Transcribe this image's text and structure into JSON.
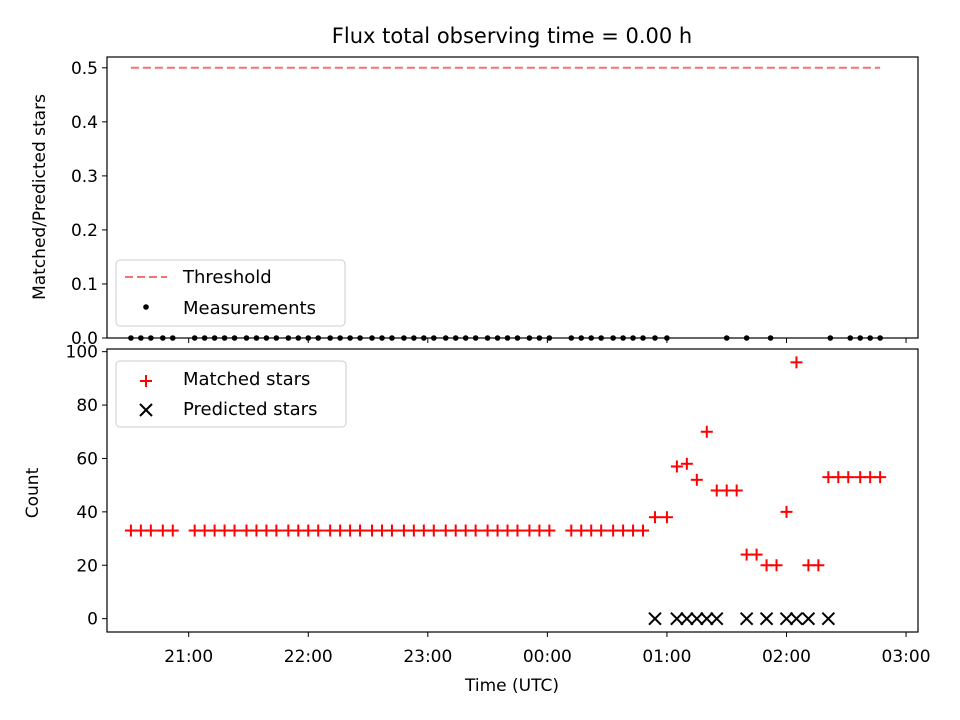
{
  "chart_data": [
    {
      "type": "scatter",
      "title": "Flux total observing time = 0.00 h",
      "ylabel": "Matched/Predicted stars",
      "xlabel": "",
      "ylim": [
        0,
        0.52
      ],
      "xlim": [
        "20:19",
        "03:06"
      ],
      "yticks": [
        "0.0",
        "0.1",
        "0.2",
        "0.3",
        "0.4",
        "0.5"
      ],
      "legend_position": "lower-left",
      "series": [
        {
          "name": "Threshold",
          "kind": "line",
          "style": "dashed",
          "color": "#f87171",
          "x": [
            "20:31",
            "02:47"
          ],
          "y": [
            0.5,
            0.5
          ]
        },
        {
          "name": "Measurements",
          "kind": "scatter",
          "color": "#000000",
          "x": [
            "20:31",
            "20:36",
            "20:41",
            "20:47",
            "20:52",
            "21:03",
            "21:08",
            "21:13",
            "21:18",
            "21:23",
            "21:29",
            "21:34",
            "21:39",
            "21:44",
            "21:50",
            "21:55",
            "22:00",
            "22:05",
            "22:11",
            "22:16",
            "22:21",
            "22:26",
            "22:32",
            "22:37",
            "22:42",
            "22:48",
            "22:53",
            "22:58",
            "23:03",
            "23:09",
            "23:14",
            "23:19",
            "23:24",
            "23:30",
            "23:35",
            "23:40",
            "23:45",
            "23:51",
            "23:56",
            "00:01",
            "00:12",
            "00:17",
            "00:22",
            "00:27",
            "00:33",
            "00:38",
            "00:43",
            "00:48",
            "00:54",
            "01:00",
            "01:30",
            "01:40",
            "01:52",
            "02:22",
            "02:32",
            "02:37",
            "02:42",
            "02:47"
          ],
          "y_all": 0
        }
      ]
    },
    {
      "type": "scatter",
      "title": "",
      "ylabel": "Count",
      "xlabel": "Time (UTC)",
      "ylim": [
        -5,
        101
      ],
      "xlim": [
        "20:19",
        "03:06"
      ],
      "yticks": [
        "0",
        "20",
        "40",
        "60",
        "80",
        "100"
      ],
      "xticks": [
        "21:00",
        "22:00",
        "23:00",
        "00:00",
        "01:00",
        "02:00",
        "03:00"
      ],
      "legend_position": "upper-left",
      "series": [
        {
          "name": "Matched stars",
          "marker": "plus",
          "color": "#ff0000",
          "points": [
            [
              "20:31",
              33
            ],
            [
              "20:36",
              33
            ],
            [
              "20:41",
              33
            ],
            [
              "20:47",
              33
            ],
            [
              "20:52",
              33
            ],
            [
              "21:03",
              33
            ],
            [
              "21:08",
              33
            ],
            [
              "21:13",
              33
            ],
            [
              "21:18",
              33
            ],
            [
              "21:23",
              33
            ],
            [
              "21:29",
              33
            ],
            [
              "21:34",
              33
            ],
            [
              "21:39",
              33
            ],
            [
              "21:44",
              33
            ],
            [
              "21:50",
              33
            ],
            [
              "21:55",
              33
            ],
            [
              "22:00",
              33
            ],
            [
              "22:05",
              33
            ],
            [
              "22:11",
              33
            ],
            [
              "22:16",
              33
            ],
            [
              "22:21",
              33
            ],
            [
              "22:26",
              33
            ],
            [
              "22:32",
              33
            ],
            [
              "22:37",
              33
            ],
            [
              "22:42",
              33
            ],
            [
              "22:48",
              33
            ],
            [
              "22:53",
              33
            ],
            [
              "22:58",
              33
            ],
            [
              "23:03",
              33
            ],
            [
              "23:09",
              33
            ],
            [
              "23:14",
              33
            ],
            [
              "23:19",
              33
            ],
            [
              "23:24",
              33
            ],
            [
              "23:30",
              33
            ],
            [
              "23:35",
              33
            ],
            [
              "23:40",
              33
            ],
            [
              "23:45",
              33
            ],
            [
              "23:51",
              33
            ],
            [
              "23:56",
              33
            ],
            [
              "00:01",
              33
            ],
            [
              "00:12",
              33
            ],
            [
              "00:17",
              33
            ],
            [
              "00:22",
              33
            ],
            [
              "00:27",
              33
            ],
            [
              "00:33",
              33
            ],
            [
              "00:38",
              33
            ],
            [
              "00:43",
              33
            ],
            [
              "00:48",
              33
            ],
            [
              "00:54",
              38
            ],
            [
              "01:00",
              38
            ],
            [
              "01:05",
              57
            ],
            [
              "01:10",
              58
            ],
            [
              "01:15",
              52
            ],
            [
              "01:20",
              70
            ],
            [
              "01:25",
              48
            ],
            [
              "01:30",
              48
            ],
            [
              "01:35",
              48
            ],
            [
              "01:40",
              24
            ],
            [
              "01:45",
              24
            ],
            [
              "01:50",
              20
            ],
            [
              "01:55",
              20
            ],
            [
              "02:00",
              40
            ],
            [
              "02:05",
              96
            ],
            [
              "02:11",
              20
            ],
            [
              "02:16",
              20
            ],
            [
              "02:21",
              53
            ],
            [
              "02:26",
              53
            ],
            [
              "02:31",
              53
            ],
            [
              "02:37",
              53
            ],
            [
              "02:42",
              53
            ],
            [
              "02:47",
              53
            ]
          ]
        },
        {
          "name": "Predicted stars",
          "marker": "x",
          "color": "#000000",
          "points": [
            [
              "00:54",
              0
            ],
            [
              "01:05",
              0
            ],
            [
              "01:10",
              0
            ],
            [
              "01:15",
              0
            ],
            [
              "01:20",
              0
            ],
            [
              "01:25",
              0
            ],
            [
              "01:40",
              0
            ],
            [
              "01:50",
              0
            ],
            [
              "02:00",
              0
            ],
            [
              "02:05",
              0
            ],
            [
              "02:11",
              0
            ],
            [
              "02:21",
              0
            ]
          ]
        }
      ]
    }
  ]
}
